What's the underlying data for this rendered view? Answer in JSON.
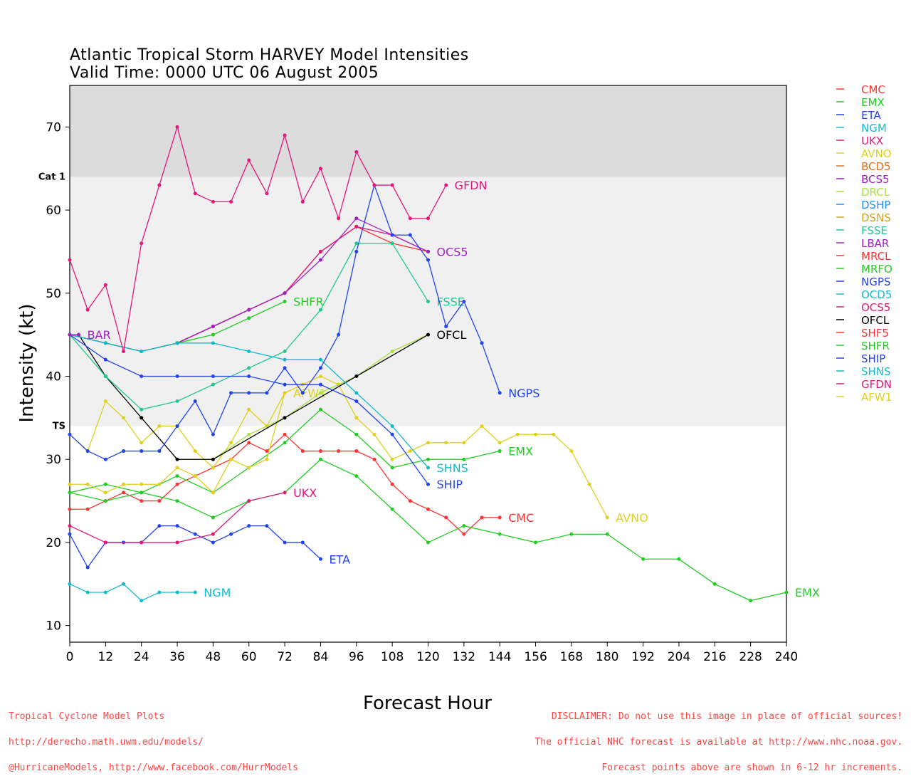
{
  "title_line1": "Atlantic Tropical Storm HARVEY Model Intensities",
  "title_line2": "Valid Time: 0000 UTC 06 August 2005",
  "footer_left": {
    "line1": "Tropical Cyclone Model Plots",
    "line2": "http://derecho.math.uwm.edu/models/",
    "line3": "@HurricaneModels, http://www.facebook.com/HurrModels"
  },
  "footer_right": {
    "line1": "DISCLAIMER: Do not use this image in place of official sources!",
    "line2": "The official NHC forecast is available at http://www.nhc.noaa.gov.",
    "line3": "Forecast points above are shown in 6-12 hr increments."
  },
  "chart_data": {
    "type": "line",
    "xlabel": "Forecast Hour",
    "ylabel": "Intensity (kt)",
    "xlim": [
      0,
      240
    ],
    "ylim": [
      8,
      75
    ],
    "xticks": [
      0,
      12,
      24,
      36,
      48,
      60,
      72,
      84,
      96,
      108,
      120,
      132,
      144,
      156,
      168,
      180,
      192,
      204,
      216,
      228,
      240
    ],
    "yticks": [
      10,
      20,
      30,
      40,
      50,
      60,
      70
    ],
    "bands": [
      {
        "label": "TS",
        "from": 34,
        "to": 64,
        "color": "#f0f0f0"
      },
      {
        "label": "Cat 1",
        "from": 64,
        "to": 75,
        "color": "#dcdcdc"
      }
    ],
    "legend": [
      "CMC",
      "EMX",
      "ETA",
      "NGM",
      "UKX",
      "AVNO",
      "BCD5",
      "BCS5",
      "DRCL",
      "DSHP",
      "DSNS",
      "FSSE",
      "LBAR",
      "MRCL",
      "MRFO",
      "NGPS",
      "OCD5",
      "OCS5",
      "OFCL",
      "SHF5",
      "SHFR",
      "SHIP",
      "SHNS",
      "GFDN",
      "AFW1"
    ],
    "series": [
      {
        "name": "CMC",
        "color": "#ff3333",
        "label": "CMC",
        "x": [
          0,
          6,
          12,
          18,
          24,
          30,
          36,
          42,
          48,
          54,
          60,
          66,
          72,
          78,
          84,
          90,
          96,
          102,
          108,
          114,
          120,
          126,
          132,
          138,
          144
        ],
        "y": [
          24,
          24,
          25,
          26,
          25,
          25,
          27,
          28,
          29,
          30,
          32,
          31,
          33,
          31,
          31,
          31,
          31,
          30,
          27,
          25,
          24,
          23,
          21,
          23,
          23
        ]
      },
      {
        "name": "EMX",
        "color": "#22cc22",
        "label": "EMX",
        "x": [
          0,
          12,
          24,
          36,
          48,
          60,
          72,
          84,
          96,
          108,
          120,
          132,
          144,
          156,
          168,
          180,
          192,
          204,
          216,
          228,
          240
        ],
        "y": [
          26,
          25,
          26,
          28,
          26,
          29,
          32,
          36,
          33,
          29,
          30,
          30,
          31,
          null,
          null,
          null,
          null,
          null,
          null,
          null,
          null
        ]
      },
      {
        "name": "EMX-long",
        "color": "#22cc22",
        "label": "EMX",
        "x": [
          0,
          12,
          24,
          36,
          48,
          60,
          72,
          84,
          96,
          108,
          120,
          132,
          144,
          156,
          168,
          180,
          192,
          204,
          216,
          228,
          240
        ],
        "y": [
          26,
          27,
          26,
          25,
          23,
          25,
          26,
          30,
          28,
          24,
          20,
          22,
          21,
          20,
          21,
          21,
          18,
          18,
          15,
          13,
          14
        ]
      },
      {
        "name": "ETA",
        "color": "#2244ee",
        "label": "ETA",
        "x": [
          0,
          6,
          12,
          18,
          24,
          30,
          36,
          42,
          48,
          54,
          60,
          66,
          72,
          78,
          84
        ],
        "y": [
          21,
          17,
          20,
          20,
          20,
          22,
          22,
          21,
          20,
          21,
          22,
          22,
          20,
          20,
          18
        ]
      },
      {
        "name": "NGM",
        "color": "#11bbcc",
        "label": "NGM",
        "x": [
          0,
          6,
          12,
          18,
          24,
          30,
          36,
          42
        ],
        "y": [
          15,
          14,
          14,
          15,
          13,
          14,
          14,
          14
        ]
      },
      {
        "name": "UKX",
        "color": "#e0187a",
        "label": "UKX",
        "x": [
          0,
          12,
          24,
          36,
          48,
          60,
          72
        ],
        "y": [
          22,
          20,
          20,
          20,
          21,
          25,
          26
        ]
      },
      {
        "name": "AVNO",
        "color": "#e0d020",
        "label": "AVNO",
        "x": [
          0,
          6,
          12,
          18,
          24,
          30,
          36,
          42,
          48,
          54,
          60,
          66,
          72,
          78,
          84,
          90,
          96,
          102,
          108,
          114,
          120,
          126,
          132,
          138,
          144,
          150,
          156,
          162,
          168,
          174,
          180
        ],
        "y": [
          33,
          31,
          37,
          35,
          32,
          34,
          34,
          31,
          29,
          32,
          36,
          34,
          38,
          39,
          40,
          39,
          35,
          33,
          30,
          31,
          32,
          32,
          32,
          34,
          32,
          33,
          33,
          33,
          31,
          27,
          23
        ]
      },
      {
        "name": "AFW1",
        "color": "#e0d020",
        "label": "AFW1",
        "x": [
          0,
          6,
          12,
          18,
          24,
          30,
          36,
          42,
          48,
          54,
          60,
          66,
          72
        ],
        "y": [
          27,
          27,
          26,
          27,
          27,
          27,
          29,
          28,
          26,
          30,
          29,
          30,
          38
        ]
      },
      {
        "name": "DRCL",
        "color": "#a8e040",
        "label": "",
        "x": [
          0,
          12,
          24,
          36,
          48,
          60,
          72,
          84,
          96,
          108,
          120
        ],
        "y": [
          45,
          40,
          35,
          30,
          30,
          33,
          35,
          38,
          40,
          43,
          45
        ]
      },
      {
        "name": "OFCL",
        "color": "#000000",
        "label": "OFCL",
        "x": [
          0,
          3,
          12,
          24,
          36,
          48,
          72,
          96,
          120
        ],
        "y": [
          45,
          45,
          40,
          35,
          30,
          30,
          35,
          40,
          45
        ]
      },
      {
        "name": "SHF5",
        "color": "#ff3333",
        "label": "",
        "x": [
          0,
          12,
          24,
          36,
          48,
          60,
          72,
          84,
          96,
          108,
          120
        ],
        "y": [
          45,
          44,
          43,
          44,
          46,
          48,
          50,
          55,
          58,
          56,
          55
        ]
      },
      {
        "name": "OCS5",
        "color": "#e0187a",
        "label": "",
        "x": [
          0,
          12,
          24,
          36,
          48,
          60,
          72,
          84,
          96,
          108,
          120
        ],
        "y": [
          45,
          44,
          43,
          44,
          46,
          48,
          50,
          55,
          58,
          57,
          55
        ]
      },
      {
        "name": "BCS5",
        "color": "#a020c0",
        "label": "OCS5",
        "x": [
          0,
          12,
          24,
          36,
          48,
          60,
          72,
          84,
          96,
          108,
          120
        ],
        "y": [
          45,
          44,
          43,
          44,
          46,
          48,
          50,
          54,
          59,
          57,
          55
        ]
      },
      {
        "name": "SHFR",
        "color": "#22cc22",
        "label": "SHFR",
        "x": [
          0,
          12,
          24,
          36,
          48,
          60,
          72
        ],
        "y": [
          45,
          44,
          43,
          44,
          45,
          47,
          49
        ]
      },
      {
        "name": "FSSE",
        "color": "#20c890",
        "label": "FSSE",
        "x": [
          0,
          12,
          24,
          36,
          48,
          60,
          72,
          84,
          96,
          108,
          120
        ],
        "y": [
          45,
          40,
          36,
          37,
          39,
          41,
          43,
          48,
          56,
          56,
          49
        ]
      },
      {
        "name": "SHNS",
        "color": "#11bbcc",
        "label": "SHNS",
        "x": [
          0,
          12,
          24,
          36,
          48,
          60,
          72,
          84,
          96,
          108,
          120
        ],
        "y": [
          45,
          44,
          43,
          44,
          44,
          43,
          42,
          42,
          38,
          34,
          29
        ]
      },
      {
        "name": "SHIP",
        "color": "#2244ee",
        "label": "SHIP",
        "x": [
          0,
          12,
          24,
          36,
          48,
          60,
          72,
          84,
          96,
          108,
          120
        ],
        "y": [
          45,
          42,
          40,
          40,
          40,
          40,
          39,
          39,
          37,
          33,
          27
        ]
      },
      {
        "name": "NGPS",
        "color": "#2244ee",
        "label": "NGPS",
        "x": [
          0,
          6,
          12,
          18,
          24,
          30,
          36,
          42,
          48,
          54,
          60,
          66,
          72,
          78,
          84,
          90,
          96,
          102,
          108,
          114,
          120,
          126,
          132,
          138,
          144
        ],
        "y": [
          33,
          31,
          30,
          31,
          31,
          31,
          34,
          37,
          33,
          38,
          38,
          38,
          41,
          38,
          41,
          45,
          55,
          63,
          57,
          57,
          54,
          46,
          49,
          44,
          38
        ]
      },
      {
        "name": "GFDN",
        "color": "#e0187a",
        "label": "GFDN",
        "x": [
          0,
          6,
          12,
          18,
          24,
          30,
          36,
          42,
          48,
          54,
          60,
          66,
          72,
          78,
          84,
          90,
          96,
          102,
          108,
          114,
          120,
          126
        ],
        "y": [
          54,
          48,
          51,
          43,
          56,
          63,
          70,
          62,
          61,
          61,
          66,
          62,
          69,
          61,
          65,
          59,
          67,
          63,
          63,
          59,
          59,
          63
        ]
      },
      {
        "name": "LBAR",
        "color": "#a020c0",
        "label": "BAR",
        "x": [
          0,
          3
        ],
        "y": [
          45,
          45
        ]
      }
    ]
  }
}
